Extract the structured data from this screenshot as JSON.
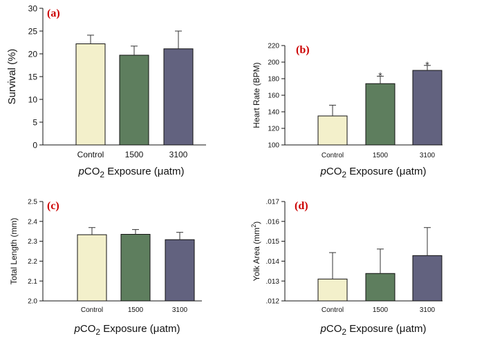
{
  "colors": {
    "control": "#f3f0cb",
    "c1500": "#5e7e5e",
    "c3100": "#62627f"
  },
  "xaxis_title": {
    "p": "p",
    "co": "CO",
    "sub": "2",
    "rest": " Exposure (",
    "mu": "μ",
    "unit": "atm)"
  },
  "chart_data": [
    {
      "type": "bar",
      "panel_label": "(a)",
      "ylabel": "Survival (%)",
      "categories": [
        "Control",
        "1500",
        "3100"
      ],
      "values": [
        22.2,
        19.7,
        21.1
      ],
      "errors": [
        1.9,
        2.0,
        3.9
      ],
      "ylim": [
        0,
        30
      ],
      "yticks": [
        "0",
        "5",
        "10",
        "15",
        "20",
        "25",
        "30"
      ],
      "significance": [
        "",
        "",
        ""
      ]
    },
    {
      "type": "bar",
      "panel_label": "(b)",
      "ylabel": "Heart Rate (BPM)",
      "categories": [
        "Control",
        "1500",
        "3100"
      ],
      "values": [
        135,
        174,
        190
      ],
      "errors": [
        13,
        9,
        6
      ],
      "ylim": [
        100,
        220
      ],
      "yticks": [
        "100",
        "120",
        "140",
        "160",
        "180",
        "200",
        "220"
      ],
      "significance": [
        "",
        "*",
        "*"
      ]
    },
    {
      "type": "bar",
      "panel_label": "(c)",
      "ylabel": "Total Length (mm)",
      "categories": [
        "Control",
        "1500",
        "3100"
      ],
      "values": [
        2.333,
        2.335,
        2.308
      ],
      "errors": [
        0.036,
        0.024,
        0.037
      ],
      "ylim": [
        2.0,
        2.5
      ],
      "yticks": [
        "2.0",
        "2.1",
        "2.2",
        "2.3",
        "2.4",
        "2.5"
      ],
      "significance": [
        "",
        "",
        ""
      ]
    },
    {
      "type": "bar",
      "panel_label": "(d)",
      "ylabel_main": "Yolk Area (mm",
      "ylabel_sup": "2",
      "ylabel_close": ")",
      "categories": [
        "Control",
        "1500",
        "3100"
      ],
      "values": [
        0.0131,
        0.01338,
        0.01428
      ],
      "errors": [
        0.00133,
        0.00123,
        0.00141
      ],
      "ylim": [
        0.012,
        0.017
      ],
      "yticks": [
        ".012",
        ".013",
        ".014",
        ".015",
        ".016",
        ".017"
      ],
      "significance": [
        "",
        "",
        ""
      ]
    }
  ]
}
